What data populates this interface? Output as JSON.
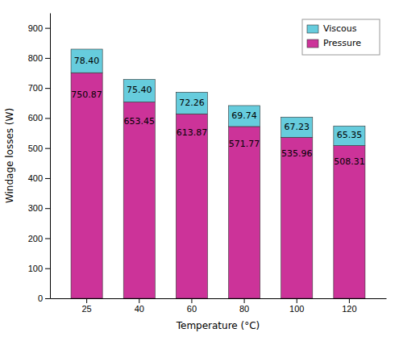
{
  "chart_data": {
    "type": "bar",
    "stacked": true,
    "xlabel": "Temperature (°C)",
    "ylabel": "Windage losses (W)",
    "categories": [
      "25",
      "40",
      "60",
      "80",
      "100",
      "120"
    ],
    "series": [
      {
        "name": "Pressure",
        "color": "#CC3399",
        "values": [
          750.87,
          653.45,
          613.87,
          571.77,
          535.96,
          508.31
        ],
        "value_labels": [
          "750.87",
          "653.45",
          "613.87",
          "571.77",
          "535.96",
          "508.31"
        ]
      },
      {
        "name": "Viscous",
        "color": "#66CCDD",
        "values": [
          78.4,
          75.4,
          72.26,
          69.74,
          67.23,
          65.35
        ],
        "value_labels": [
          "78.40",
          "75.40",
          "72.26",
          "69.74",
          "67.23",
          "65.35"
        ]
      }
    ],
    "ylim": [
      0,
      950
    ],
    "yticks": [
      0,
      100,
      200,
      300,
      400,
      500,
      600,
      700,
      800,
      900
    ],
    "grid": false,
    "legend": "upper right",
    "data_labels": true
  }
}
